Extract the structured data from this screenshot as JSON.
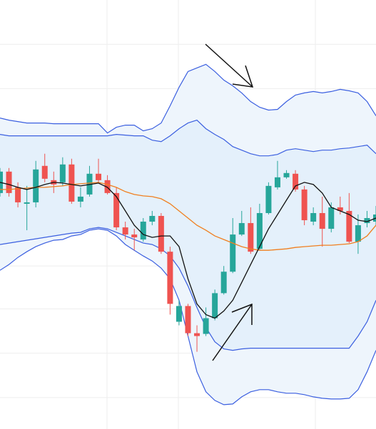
{
  "chart_data": {
    "type": "candlestick",
    "categories": [
      null,
      null,
      null,
      null,
      null,
      null,
      null,
      null,
      null,
      null,
      null,
      null,
      null,
      null,
      null,
      null,
      null,
      null,
      null,
      null,
      null,
      null,
      null,
      null,
      null,
      null,
      null,
      null,
      null,
      null,
      null,
      null,
      null,
      null,
      null,
      null,
      null,
      null,
      null,
      null,
      null,
      null,
      null
    ],
    "open": [
      330,
      360,
      338,
      315,
      317,
      368,
      348,
      345,
      370,
      318,
      328,
      357,
      348,
      330,
      282,
      272,
      265,
      290,
      298,
      248,
      150,
      172,
      134,
      133,
      155,
      190,
      220,
      272,
      288,
      252,
      302,
      338,
      352,
      357,
      335,
      290,
      302,
      280,
      310,
      305,
      262,
      288,
      290
    ],
    "close": [
      360,
      330,
      317,
      317,
      363,
      350,
      342,
      370,
      318,
      325,
      357,
      348,
      330,
      282,
      272,
      268,
      290,
      298,
      248,
      175,
      172,
      134,
      130,
      155,
      190,
      220,
      272,
      288,
      248,
      302,
      340,
      352,
      358,
      335,
      292,
      302,
      280,
      310,
      305,
      262,
      285,
      295,
      300
    ],
    "high": [
      365,
      365,
      345,
      340,
      375,
      385,
      360,
      380,
      378,
      338,
      368,
      378,
      355,
      338,
      290,
      280,
      295,
      305,
      302,
      255,
      180,
      175,
      145,
      170,
      195,
      228,
      295,
      305,
      310,
      315,
      345,
      375,
      362,
      362,
      340,
      310,
      325,
      317,
      325,
      330,
      300,
      305,
      312
    ],
    "low": [
      325,
      325,
      310,
      278,
      310,
      345,
      330,
      340,
      315,
      310,
      325,
      345,
      328,
      278,
      265,
      250,
      262,
      285,
      245,
      160,
      145,
      130,
      108,
      130,
      152,
      188,
      218,
      270,
      245,
      250,
      300,
      335,
      350,
      332,
      285,
      285,
      255,
      275,
      300,
      260,
      245,
      282,
      285
    ],
    "up_color": "#26a69a",
    "down_color": "#ef5350",
    "bands": [
      {
        "color": "#3b5fe0",
        "fill": "#eef5fc",
        "upper": [
          435,
          432,
          430,
          428,
          428,
          428,
          427,
          427,
          427,
          427,
          427,
          427,
          414,
          422,
          425,
          425,
          417,
          420,
          428,
          452,
          478,
          500,
          505,
          510,
          500,
          488,
          480,
          470,
          458,
          450,
          446,
          447,
          458,
          467,
          470,
          472,
          470,
          472,
          475,
          473,
          470,
          458,
          438
        ],
        "lower": [
          222,
          230,
          240,
          248,
          255,
          260,
          264,
          265,
          270,
          272,
          278,
          280,
          278,
          270,
          258,
          250,
          242,
          235,
          225,
          210,
          180,
          130,
          80,
          52,
          40,
          34,
          35,
          45,
          52,
          55,
          55,
          52,
          50,
          50,
          48,
          45,
          43,
          42,
          42,
          43,
          55,
          80,
          110
        ]
      },
      {
        "color": "#3b5fe0",
        "fill": "#e4f0fb",
        "upper": [
          412,
          410,
          410,
          410,
          410,
          410,
          410,
          410,
          410,
          410,
          410,
          410,
          410,
          412,
          411,
          410,
          410,
          404,
          402,
          410,
          420,
          428,
          432,
          420,
          412,
          405,
          395,
          390,
          385,
          382,
          382,
          384,
          390,
          392,
          390,
          388,
          390,
          390,
          392,
          393,
          395,
          397,
          385
        ],
        "lower": [
          258,
          260,
          262,
          264,
          266,
          268,
          270,
          272,
          274,
          275,
          280,
          282,
          280,
          275,
          270,
          265,
          260,
          258,
          252,
          242,
          225,
          200,
          170,
          142,
          122,
          112,
          110,
          112,
          113,
          113,
          113,
          113,
          113,
          113,
          113,
          113,
          113,
          113,
          113,
          113,
          130,
          150,
          180
        ]
      }
    ],
    "lines": [
      {
        "color": "#f07f1f",
        "values": [
          335,
          335,
          336,
          337,
          338,
          338,
          339,
          340,
          342,
          343,
          344,
          345,
          342,
          338,
          332,
          328,
          326,
          325,
          322,
          315,
          305,
          295,
          285,
          278,
          270,
          265,
          260,
          255,
          252,
          250,
          250,
          251,
          252,
          254,
          255,
          256,
          257,
          257,
          258,
          259,
          262,
          270,
          285
        ]
      },
      {
        "color": "#111111",
        "values": [
          345,
          342,
          338,
          335,
          338,
          342,
          345,
          344,
          342,
          340,
          342,
          344,
          338,
          325,
          305,
          285,
          272,
          268,
          270,
          270,
          255,
          210,
          175,
          160,
          155,
          165,
          180,
          205,
          230,
          255,
          280,
          300,
          320,
          340,
          345,
          342,
          330,
          310,
          305,
          300,
          292,
          290,
          295
        ]
      }
    ],
    "ylim": [
      0,
      600
    ],
    "yticks": [
      44,
      106,
      168,
      228,
      290,
      352,
      414,
      476,
      538
    ],
    "grid": true
  }
}
